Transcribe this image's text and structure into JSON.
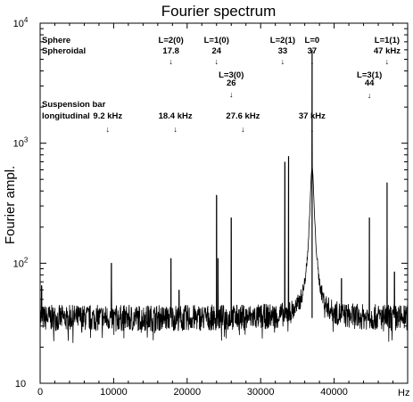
{
  "chart_data": {
    "type": "line",
    "title": "Fourier spectrum",
    "xlabel": "Hz",
    "ylabel": "Fourier ampl.",
    "xlim": [
      0,
      50000
    ],
    "ylim": [
      10,
      10000
    ],
    "yscale": "log",
    "grid": false,
    "x_ticks": [
      "0",
      "10000",
      "20000",
      "30000",
      "40000"
    ],
    "y_ticks": [
      {
        "base": "10",
        "exp": "",
        "value": 10
      },
      {
        "base": "10",
        "exp": "2",
        "value": 100
      },
      {
        "base": "10",
        "exp": "3",
        "value": 1000
      },
      {
        "base": "10",
        "exp": "4",
        "value": 10000
      }
    ],
    "baseline": 35,
    "series": [
      {
        "peaks": [
          {
            "x": 200,
            "y": 65
          },
          {
            "x": 9700,
            "y": 100
          },
          {
            "x": 17800,
            "y": 110
          },
          {
            "x": 18900,
            "y": 60
          },
          {
            "x": 24000,
            "y": 370
          },
          {
            "x": 24200,
            "y": 110
          },
          {
            "x": 26000,
            "y": 240
          },
          {
            "x": 33300,
            "y": 700
          },
          {
            "x": 33800,
            "y": 780
          },
          {
            "x": 37000,
            "y": 6000
          },
          {
            "x": 41000,
            "y": 75
          },
          {
            "x": 44800,
            "y": 240
          },
          {
            "x": 47200,
            "y": 470
          },
          {
            "x": 48200,
            "y": 85
          }
        ]
      }
    ],
    "annotations": {
      "sphere_header": [
        "Sphere",
        "Spheroidal"
      ],
      "sphere_modes": [
        {
          "label": "L=2(0)",
          "value": "17.8",
          "x": 17800,
          "row": 0
        },
        {
          "label": "L=1(0)",
          "value": "24",
          "x": 24000,
          "row": 0
        },
        {
          "label": "L=2(1)",
          "value": "33",
          "x": 33000,
          "row": 0
        },
        {
          "label": "L=0",
          "value": "37",
          "x": 37000,
          "row": 0
        },
        {
          "label": "L=1(1)",
          "value": "47 kHz",
          "x": 47200,
          "row": 0
        },
        {
          "label": "L=3(0)",
          "value": "26",
          "x": 26000,
          "row": 1
        },
        {
          "label": "L=3(1)",
          "value": "44",
          "x": 44800,
          "row": 2
        }
      ],
      "bar_header": [
        "Suspension bar",
        "longitudinal"
      ],
      "bar_modes": [
        {
          "value": "9.2 kHz",
          "x": 9200
        },
        {
          "value": "18.4 kHz",
          "x": 18400
        },
        {
          "value": "27.6 kHz",
          "x": 27600
        },
        {
          "value": "37 kHz",
          "x": 37000
        }
      ]
    }
  }
}
